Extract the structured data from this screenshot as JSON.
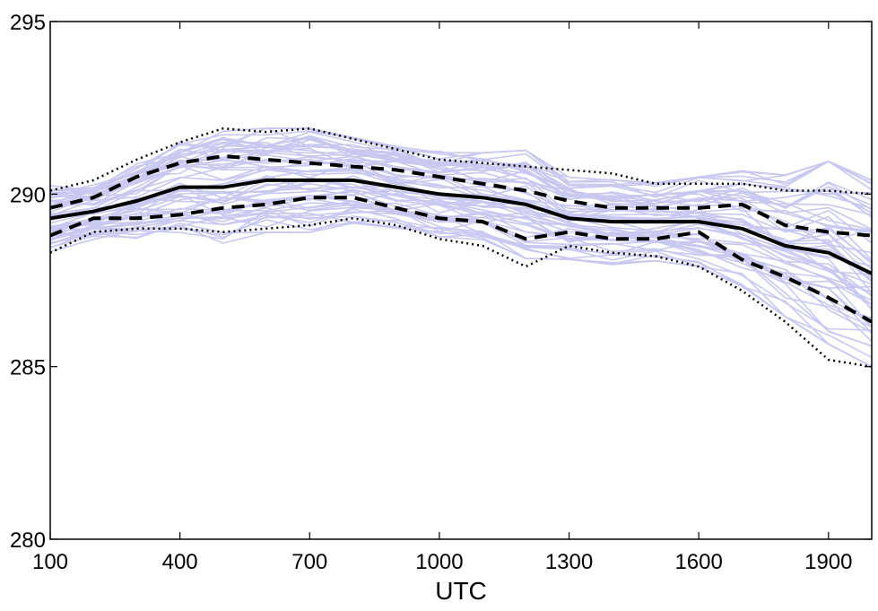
{
  "chart_data": {
    "type": "line",
    "title": "",
    "xlabel": "UTC",
    "ylabel": "",
    "xlim": [
      100,
      2000
    ],
    "ylim": [
      280,
      295
    ],
    "x_ticks": [
      100,
      400,
      700,
      1000,
      1300,
      1600,
      1900
    ],
    "x_tick_labels": [
      "100",
      "400",
      "700",
      "1000",
      "1300",
      "1600",
      "1900"
    ],
    "y_ticks": [
      280,
      285,
      290,
      295
    ],
    "y_tick_labels": [
      "280",
      "285",
      "290",
      "295"
    ],
    "grid": false,
    "x": [
      100,
      200,
      300,
      400,
      500,
      600,
      700,
      800,
      900,
      1000,
      1100,
      1200,
      1300,
      1400,
      1500,
      1600,
      1700,
      1800,
      1900,
      2000
    ],
    "series": [
      {
        "style": "solid",
        "color": "#000000",
        "values": [
          289.3,
          289.5,
          289.8,
          290.2,
          290.2,
          290.4,
          290.4,
          290.4,
          290.2,
          290.0,
          289.9,
          289.7,
          289.3,
          289.2,
          289.2,
          289.2,
          289.0,
          288.5,
          288.3,
          287.7
        ]
      },
      {
        "style": "dashed",
        "color": "#000000",
        "values": [
          289.6,
          289.9,
          290.5,
          290.9,
          291.1,
          291.0,
          290.9,
          290.8,
          290.7,
          290.5,
          290.3,
          290.1,
          289.8,
          289.6,
          289.6,
          289.6,
          289.7,
          289.1,
          288.9,
          288.8
        ]
      },
      {
        "style": "dashed",
        "color": "#000000",
        "values": [
          288.8,
          289.3,
          289.3,
          289.4,
          289.6,
          289.7,
          289.9,
          289.9,
          289.6,
          289.3,
          289.2,
          288.7,
          288.9,
          288.7,
          288.7,
          288.9,
          288.1,
          287.6,
          287.0,
          286.3
        ]
      },
      {
        "style": "dotted",
        "color": "#000000",
        "values": [
          290.1,
          290.4,
          291.0,
          291.5,
          291.9,
          291.8,
          291.9,
          291.6,
          291.3,
          291.0,
          290.9,
          290.8,
          290.7,
          290.6,
          290.3,
          290.3,
          290.3,
          290.1,
          290.1,
          290.0
        ]
      },
      {
        "style": "dotted",
        "color": "#000000",
        "values": [
          288.3,
          288.9,
          289.0,
          289.0,
          288.9,
          289.0,
          289.1,
          289.3,
          289.1,
          288.7,
          288.5,
          287.9,
          288.5,
          288.3,
          288.2,
          287.9,
          287.2,
          286.3,
          285.2,
          285.0
        ]
      }
    ],
    "ensemble": {
      "color": "#c8c8f0",
      "member_count": 60
    }
  }
}
